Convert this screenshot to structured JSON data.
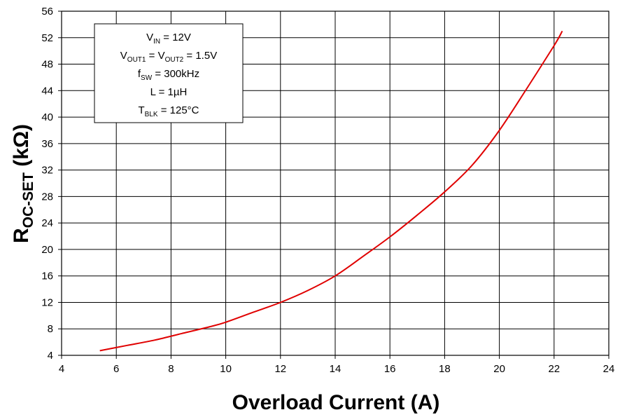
{
  "chart_data": {
    "type": "line",
    "xlabel": "Overload Current (A)",
    "ylabel": {
      "main": "R",
      "sub": "OC-SET",
      "unit": " (kΩ)"
    },
    "xlim": [
      4,
      24
    ],
    "ylim": [
      4,
      56
    ],
    "xticks": [
      4,
      6,
      8,
      10,
      12,
      14,
      16,
      18,
      20,
      22,
      24
    ],
    "yticks": [
      4,
      8,
      12,
      16,
      20,
      24,
      28,
      32,
      36,
      40,
      44,
      48,
      52,
      56
    ],
    "grid": true,
    "series": [
      {
        "color": "#e00000",
        "x": [
          5.4,
          6.4,
          7.4,
          8.4,
          9.4,
          10.0,
          11.0,
          12.0,
          13.0,
          14.0,
          15.0,
          16.0,
          17.0,
          18.0,
          19.0,
          20.0,
          21.0,
          22.0,
          22.3
        ],
        "y": [
          4.7,
          5.5,
          6.3,
          7.3,
          8.3,
          9.0,
          10.5,
          12.0,
          13.8,
          16.0,
          18.9,
          21.9,
          25.2,
          28.7,
          32.7,
          38.0,
          44.3,
          50.8,
          53.0
        ]
      }
    ],
    "annotation": {
      "lines": [
        {
          "main": "V",
          "sub": "IN",
          "rest": " = 12V"
        },
        {
          "main": "V",
          "sub": "OUT1",
          "rest": " = V",
          "sub2": "OUT2",
          "rest2": " = 1.5V"
        },
        {
          "main": "f",
          "sub": "SW",
          "rest": " = 300kHz"
        },
        {
          "main": "L = 1µH"
        },
        {
          "main": "T",
          "sub": "BLK",
          "rest": " = 125°C"
        }
      ]
    }
  }
}
